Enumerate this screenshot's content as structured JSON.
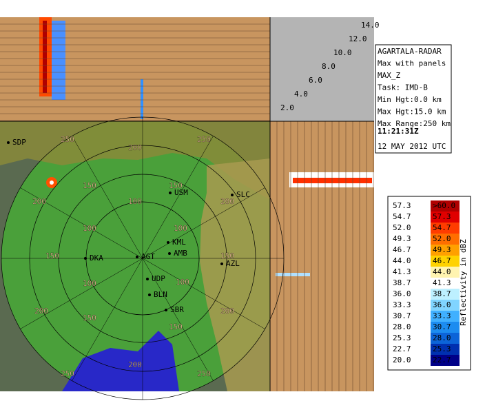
{
  "info": {
    "lines": [
      "AGARTALA-RADAR",
      "Max with panels",
      "MAX_Z",
      "Task: IMD-B",
      "Min Hgt:0.0 km",
      "Max Hgt:15.0 km",
      "Max Range:250 km"
    ],
    "time": "11:21:31Z",
    "date": "12 MAY 2012 UTC"
  },
  "heights": [
    "14.0",
    "12.0",
    "10.0",
    "8.0",
    "6.0",
    "4.0",
    "2.0"
  ],
  "stations": [
    "SDP",
    "USM",
    "SLC",
    "KML",
    "AMB",
    "AGT",
    "DKA",
    "UDP",
    "AZL",
    "BLN",
    "SBR"
  ],
  "ranges": [
    "250",
    "200",
    "250",
    "150",
    "150",
    "200",
    "100",
    "200",
    "100",
    "100",
    "150",
    "150",
    "100",
    "100",
    "200",
    "150",
    "150",
    "200",
    "200",
    "250",
    "250"
  ],
  "legend": {
    "title": "Reflectivity in dBZ",
    "rows": [
      {
        "low": "57.3",
        "high": ">60.0",
        "color": "#b00000"
      },
      {
        "low": "54.7",
        "high": "57.3",
        "color": "#e00000"
      },
      {
        "low": "52.0",
        "high": "54.7",
        "color": "#ff3c00"
      },
      {
        "low": "49.3",
        "high": "52.0",
        "color": "#ff6e00"
      },
      {
        "low": "46.7",
        "high": "49.3",
        "color": "#ffa000"
      },
      {
        "low": "44.0",
        "high": "46.7",
        "color": "#ffd200"
      },
      {
        "low": "41.3",
        "high": "44.0",
        "color": "#fff4b0"
      },
      {
        "low": "38.7",
        "high": "41.3",
        "color": "#ffffff"
      },
      {
        "low": "36.0",
        "high": "38.7",
        "color": "#bdf0ff"
      },
      {
        "low": "33.3",
        "high": "36.0",
        "color": "#80d4ff"
      },
      {
        "low": "30.7",
        "high": "33.3",
        "color": "#40b0ff"
      },
      {
        "low": "28.0",
        "high": "30.7",
        "color": "#1c8cf0"
      },
      {
        "low": "25.3",
        "high": "28.0",
        "color": "#0c64d8"
      },
      {
        "low": "22.7",
        "high": "25.3",
        "color": "#0030b0"
      },
      {
        "low": "20.0",
        "high": "22.7",
        "color": "#000088"
      }
    ]
  }
}
